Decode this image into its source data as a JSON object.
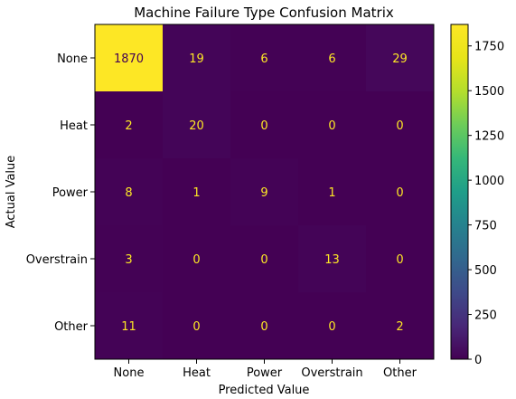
{
  "chart_data": {
    "type": "heatmap",
    "title": "Machine Failure Type Confusion Matrix",
    "xlabel": "Predicted Value",
    "ylabel": "Actual Value",
    "x_categories": [
      "None",
      "Heat",
      "Power",
      "Overstrain",
      "Other"
    ],
    "y_categories": [
      "None",
      "Heat",
      "Power",
      "Overstrain",
      "Other"
    ],
    "matrix": [
      [
        1870,
        19,
        6,
        6,
        29
      ],
      [
        2,
        20,
        0,
        0,
        0
      ],
      [
        8,
        1,
        9,
        1,
        0
      ],
      [
        3,
        0,
        0,
        13,
        0
      ],
      [
        11,
        0,
        0,
        0,
        2
      ]
    ],
    "colormap": "viridis",
    "colorbar": {
      "range": [
        0,
        1870
      ],
      "ticks": [
        0,
        250,
        500,
        750,
        1000,
        1250,
        1500,
        1750
      ]
    },
    "grid": false,
    "colors": {
      "low": "#440154",
      "high": "#fde725",
      "text_on_dark": "#fde725",
      "text_on_light": "#440154"
    }
  }
}
